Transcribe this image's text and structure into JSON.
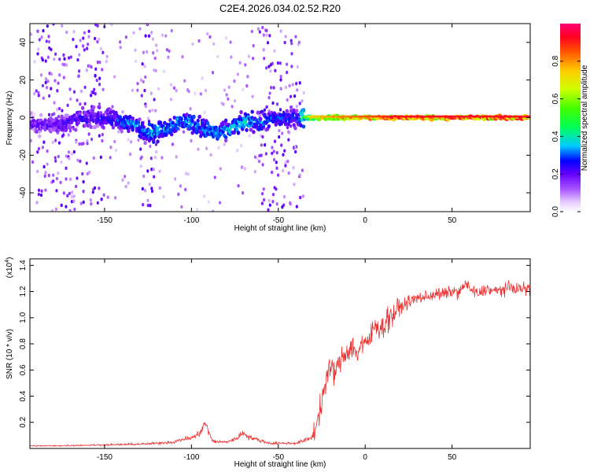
{
  "title": "C2E4.2026.034.02.52.R20",
  "chart_data": [
    {
      "type": "heatmap",
      "name": "spectrogram",
      "xlabel": "Height of straight line (km)",
      "ylabel": "Frequency (Hz)",
      "xlim": [
        -193,
        95
      ],
      "ylim": [
        -50,
        50
      ],
      "xticks": [
        -150,
        -100,
        -50,
        0,
        50
      ],
      "xtick_labels": [
        "-150",
        "-100",
        "-50",
        "0",
        "50"
      ],
      "yticks": [
        -40,
        -20,
        0,
        20,
        40
      ],
      "ytick_labels": [
        "-40",
        "-20",
        "0",
        "20",
        "40"
      ],
      "colorbar": {
        "label": "Normalized spectral amplitude",
        "range": [
          0,
          1
        ],
        "ticks": [
          0.0,
          0.2,
          0.4,
          0.6,
          0.8
        ],
        "tick_labels": [
          "0.0",
          "0.2",
          "0.4",
          "0.6",
          "0.8"
        ],
        "colors": [
          "#ffffff",
          "#b866ff",
          "#7b00ff",
          "#0000ff",
          "#00d0ff",
          "#00ff40",
          "#c8ff00",
          "#ffd000",
          "#ff4000",
          "#ff0066"
        ]
      },
      "band_amplitude_profile": [
        {
          "x": -193,
          "amp": 0.22
        },
        {
          "x": -150,
          "amp": 0.28
        },
        {
          "x": -125,
          "amp": 0.38
        },
        {
          "x": -100,
          "amp": 0.35
        },
        {
          "x": -70,
          "amp": 0.38
        },
        {
          "x": -40,
          "amp": 0.28
        },
        {
          "x": -30,
          "amp": 0.75
        },
        {
          "x": 0,
          "amp": 0.85
        },
        {
          "x": 20,
          "amp": 0.92
        },
        {
          "x": 95,
          "amp": 0.92
        }
      ]
    },
    {
      "type": "line",
      "name": "snr",
      "xlabel": "Height of straight line (km)",
      "ylabel": "SNR (10 * v/v)",
      "y_multiplier_label": "(x10",
      "y_multiplier_exp": "4",
      "y_multiplier_close": ")",
      "xlim": [
        -193,
        95
      ],
      "ylim": [
        0,
        1.45
      ],
      "xticks": [
        -150,
        -100,
        -50,
        0,
        50
      ],
      "xtick_labels": [
        "-150",
        "-100",
        "-50",
        "0",
        "50"
      ],
      "yticks": [
        0.2,
        0.4,
        0.6,
        0.8,
        1.0,
        1.2,
        1.4
      ],
      "ytick_labels": [
        "0.2",
        "0.4",
        "0.6",
        "0.8",
        "1.0",
        "1.2",
        "1.4"
      ],
      "color": "#ee3333",
      "series": [
        {
          "name": "SNR",
          "x": [
            -193,
            -180,
            -160,
            -140,
            -125,
            -115,
            -110,
            -105,
            -100,
            -97,
            -94,
            -92,
            -90,
            -88,
            -85,
            -80,
            -75,
            -72,
            -70,
            -67,
            -63,
            -60,
            -55,
            -50,
            -45,
            -40,
            -35,
            -30,
            -28,
            -25,
            -23,
            -20,
            -17,
            -15,
            -12,
            -10,
            -7,
            -5,
            -2,
            0,
            3,
            6,
            10,
            13,
            16,
            20,
            25,
            30,
            35,
            40,
            45,
            50,
            55,
            58,
            60,
            65,
            70,
            75,
            80,
            85,
            90,
            95
          ],
          "y": [
            0.02,
            0.02,
            0.025,
            0.03,
            0.035,
            0.045,
            0.05,
            0.07,
            0.08,
            0.1,
            0.14,
            0.2,
            0.12,
            0.06,
            0.05,
            0.05,
            0.07,
            0.1,
            0.12,
            0.09,
            0.07,
            0.06,
            0.04,
            0.04,
            0.04,
            0.04,
            0.06,
            0.09,
            0.2,
            0.35,
            0.5,
            0.62,
            0.58,
            0.65,
            0.72,
            0.75,
            0.78,
            0.72,
            0.8,
            0.78,
            0.85,
            0.95,
            0.92,
            1.0,
            1.02,
            1.08,
            1.12,
            1.15,
            1.16,
            1.18,
            1.18,
            1.2,
            1.2,
            1.27,
            1.22,
            1.18,
            1.22,
            1.2,
            1.22,
            1.23,
            1.22,
            1.22
          ]
        }
      ]
    }
  ]
}
